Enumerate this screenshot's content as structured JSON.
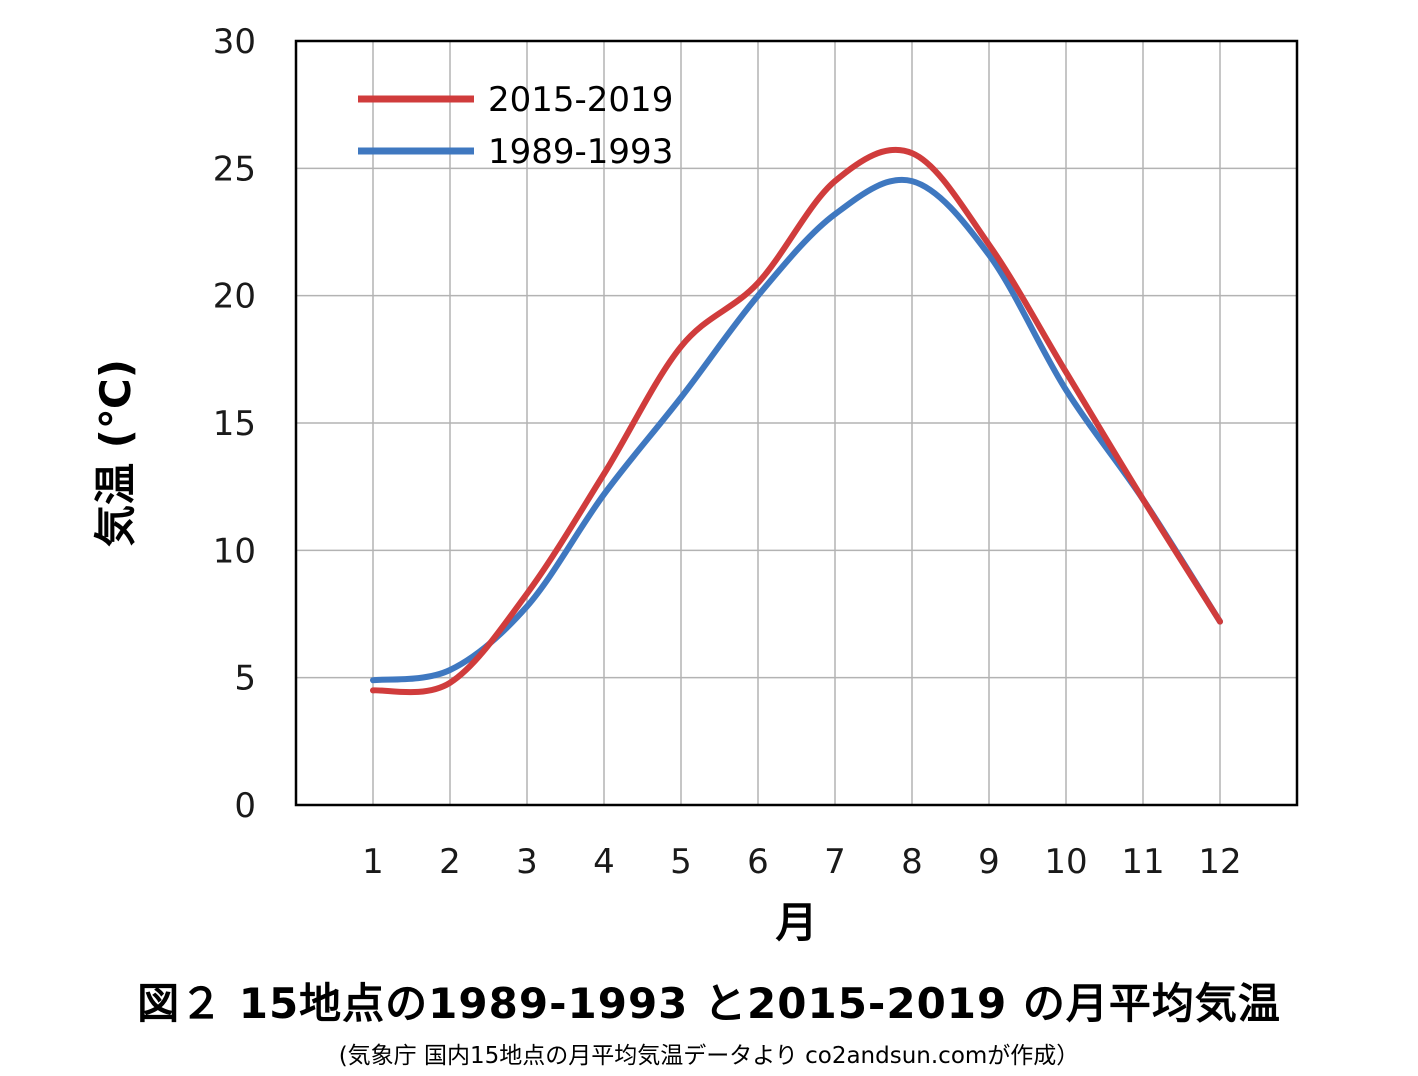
{
  "chart_data": {
    "type": "line",
    "title": "図２  15地点の1989-1993 と2015-2019 の月平均気温",
    "subtitle": "(気象庁   国内15地点の月平均気温データより co2andsun.comが作成）",
    "xlabel": "月",
    "ylabel": "気温 (℃)",
    "categories": [
      "1",
      "2",
      "3",
      "4",
      "5",
      "6",
      "7",
      "8",
      "9",
      "10",
      "11",
      "12"
    ],
    "x": [
      1,
      2,
      3,
      4,
      5,
      6,
      7,
      8,
      9,
      10,
      11,
      12
    ],
    "xlim": [
      0,
      13
    ],
    "ylim": [
      0,
      30
    ],
    "yticks": [
      "0",
      "5",
      "10",
      "15",
      "20",
      "25",
      "30"
    ],
    "grid": true,
    "legend_position": "top-left",
    "series": [
      {
        "name": "2015-2019",
        "color": "#d03c3c",
        "values": [
          4.5,
          4.8,
          8.3,
          13.0,
          18.0,
          20.5,
          24.5,
          25.6,
          22.0,
          17.0,
          12.0,
          7.2
        ]
      },
      {
        "name": "1989-1993",
        "color": "#3f78c0",
        "values": [
          4.9,
          5.3,
          7.8,
          12.2,
          16.0,
          20.0,
          23.2,
          24.5,
          21.6,
          16.3,
          12.0,
          7.2
        ]
      }
    ]
  }
}
